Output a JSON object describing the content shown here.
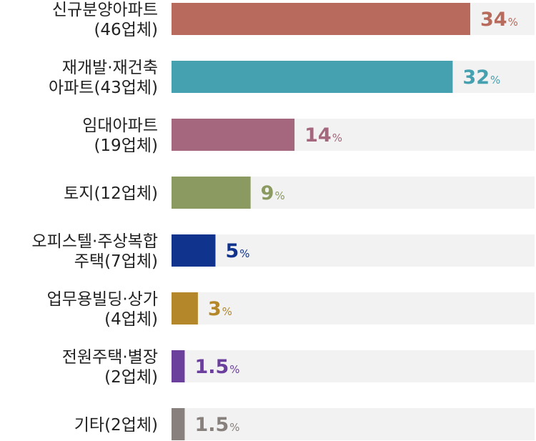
{
  "chart_data": {
    "type": "bar",
    "orientation": "horizontal",
    "unit": "%",
    "xlim": [
      0,
      40
    ],
    "grid": false,
    "legend": "none",
    "track_color": "#f2f2f2",
    "categories": [
      {
        "lines": [
          "신규분양아파트",
          "(46업체)"
        ],
        "value": 34,
        "label": "34",
        "color": "#b86b5c"
      },
      {
        "lines": [
          "재개발·재건축",
          "아파트(43업체)"
        ],
        "value": 32,
        "label": "32",
        "color": "#45a0b0"
      },
      {
        "lines": [
          "임대아파트",
          "(19업체)"
        ],
        "value": 14,
        "label": "14",
        "color": "#a4677e"
      },
      {
        "lines": [
          "토지(12업체)"
        ],
        "value": 9,
        "label": "9",
        "color": "#8a9a60"
      },
      {
        "lines": [
          "오피스텔·주상복합",
          "주택(7업체)"
        ],
        "value": 5,
        "label": "5",
        "color": "#10338d"
      },
      {
        "lines": [
          "업무용빌딩·상가",
          "(4업체)"
        ],
        "value": 3,
        "label": "3",
        "color": "#b3872a"
      },
      {
        "lines": [
          "전원주택·별장",
          "(2업체)"
        ],
        "value": 1.5,
        "label": "1.5",
        "color": "#6b3f9c"
      },
      {
        "lines": [
          "기타(2업체)"
        ],
        "value": 1.5,
        "label": "1.5",
        "color": "#87807d"
      }
    ]
  }
}
